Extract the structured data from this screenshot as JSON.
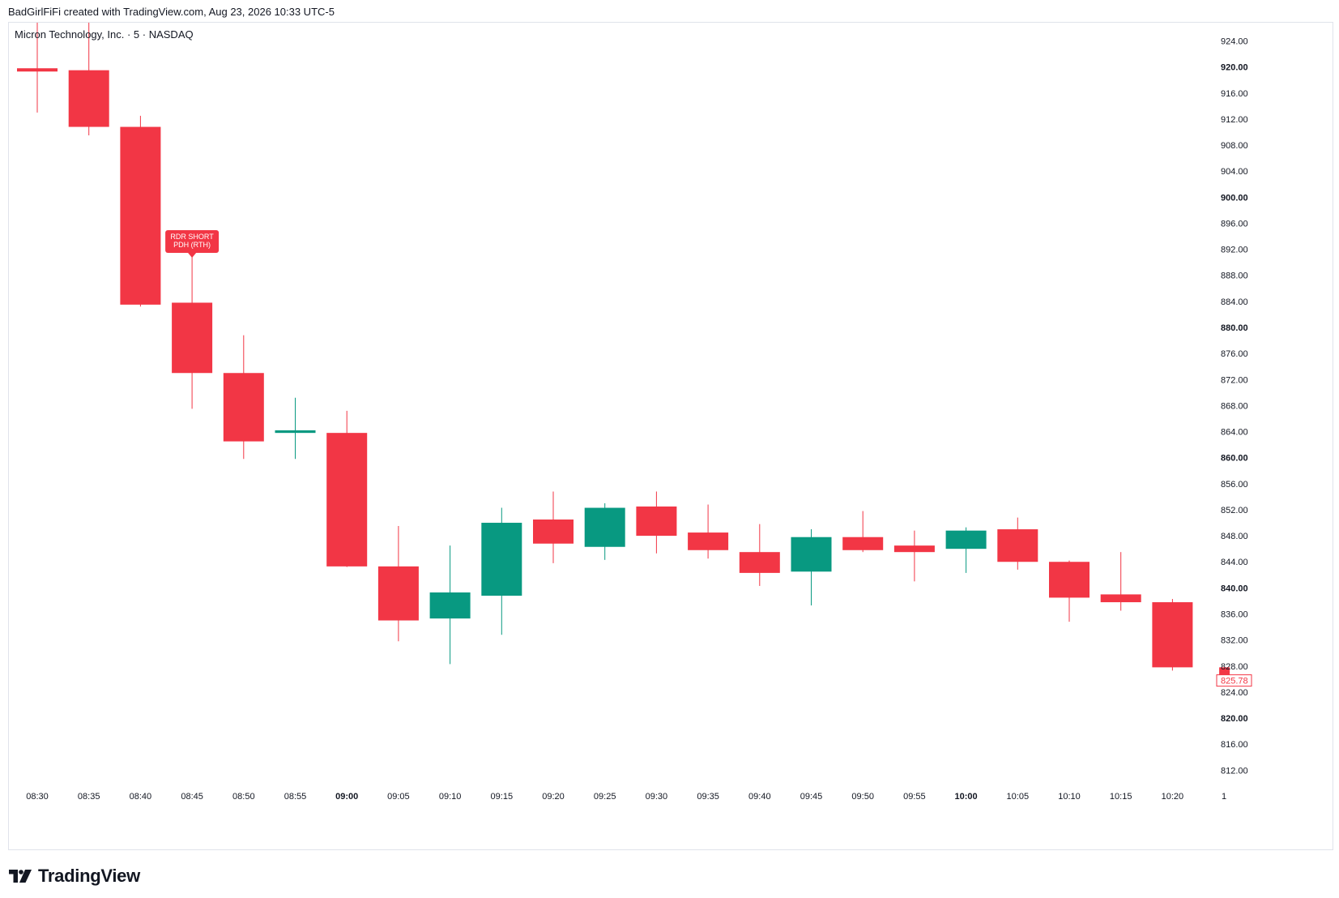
{
  "header": "BadGirlFiFi created with TradingView.com, Aug 23, 2026 10:33 UTC-5",
  "symbol_line": "Micron Technology, Inc. · 5 · NASDAQ",
  "brand": {
    "name": "TradingView",
    "icon": "tradingview-logo-icon"
  },
  "colors": {
    "up": "#089981",
    "down": "#F23645",
    "label_bg": "#F23645",
    "label_text": "#ffffff",
    "last_price_border": "#F23645"
  },
  "chart_data": {
    "type": "candlestick",
    "title": "Micron Technology, Inc. · 5 · NASDAQ",
    "interval": "5",
    "exchange": "NASDAQ",
    "y_axis": {
      "position": "right",
      "ylim": [
        809.8,
        926.8
      ],
      "ticks": [
        "924.00",
        "920.00",
        "916.00",
        "912.00",
        "908.00",
        "904.00",
        "900.00",
        "896.00",
        "892.00",
        "888.00",
        "884.00",
        "880.00",
        "876.00",
        "872.00",
        "868.00",
        "864.00",
        "860.00",
        "856.00",
        "852.00",
        "848.00",
        "844.00",
        "840.00",
        "836.00",
        "832.00",
        "828.00",
        "824.00",
        "820.00",
        "816.00",
        "812.00"
      ],
      "bold_ticks": [
        "920.00",
        "900.00",
        "880.00",
        "860.00",
        "840.00",
        "820.00"
      ]
    },
    "x_axis": {
      "ticks": [
        "08:30",
        "08:35",
        "08:40",
        "08:45",
        "08:50",
        "08:55",
        "09:00",
        "09:05",
        "09:10",
        "09:15",
        "09:20",
        "09:25",
        "09:30",
        "09:35",
        "09:40",
        "09:45",
        "09:50",
        "09:55",
        "10:00",
        "10:05",
        "10:10",
        "10:15",
        "10:20",
        "1"
      ],
      "bold_ticks": [
        "09:00",
        "10:00"
      ]
    },
    "candles": [
      {
        "time": "08:30",
        "open": 919.8,
        "high": 927.5,
        "low": 913.0,
        "close": 919.3
      },
      {
        "time": "08:35",
        "open": 919.5,
        "high": 927.5,
        "low": 909.5,
        "close": 910.8
      },
      {
        "time": "08:40",
        "open": 910.8,
        "high": 912.5,
        "low": 883.2,
        "close": 883.5
      },
      {
        "time": "08:45",
        "open": 883.8,
        "high": 891.5,
        "low": 867.5,
        "close": 873.0
      },
      {
        "time": "08:50",
        "open": 873.0,
        "high": 878.8,
        "low": 859.8,
        "close": 862.5
      },
      {
        "time": "08:55",
        "open": 863.8,
        "high": 869.2,
        "low": 859.8,
        "close": 864.2
      },
      {
        "time": "09:00",
        "open": 863.8,
        "high": 867.2,
        "low": 843.2,
        "close": 843.3
      },
      {
        "time": "09:05",
        "open": 843.3,
        "high": 849.5,
        "low": 831.8,
        "close": 835.0
      },
      {
        "time": "09:10",
        "open": 835.3,
        "high": 846.5,
        "low": 828.3,
        "close": 839.3
      },
      {
        "time": "09:15",
        "open": 838.8,
        "high": 852.3,
        "low": 832.8,
        "close": 850.0
      },
      {
        "time": "09:20",
        "open": 850.5,
        "high": 854.8,
        "low": 843.8,
        "close": 846.8
      },
      {
        "time": "09:25",
        "open": 846.3,
        "high": 853.0,
        "low": 844.3,
        "close": 852.3
      },
      {
        "time": "09:30",
        "open": 852.5,
        "high": 854.8,
        "low": 845.3,
        "close": 848.0
      },
      {
        "time": "09:35",
        "open": 848.5,
        "high": 852.8,
        "low": 844.5,
        "close": 845.8
      },
      {
        "time": "09:40",
        "open": 845.5,
        "high": 849.8,
        "low": 840.3,
        "close": 842.3
      },
      {
        "time": "09:45",
        "open": 842.5,
        "high": 849.0,
        "low": 837.3,
        "close": 847.8
      },
      {
        "time": "09:50",
        "open": 847.8,
        "high": 851.8,
        "low": 845.5,
        "close": 845.8
      },
      {
        "time": "09:55",
        "open": 846.5,
        "high": 848.8,
        "low": 841.0,
        "close": 845.5
      },
      {
        "time": "10:00",
        "open": 846.0,
        "high": 849.3,
        "low": 842.3,
        "close": 848.8
      },
      {
        "time": "10:05",
        "open": 849.0,
        "high": 850.8,
        "low": 842.8,
        "close": 844.0
      },
      {
        "time": "10:10",
        "open": 844.0,
        "high": 844.2,
        "low": 834.8,
        "close": 838.5
      },
      {
        "time": "10:15",
        "open": 839.0,
        "high": 845.5,
        "low": 836.5,
        "close": 837.8
      },
      {
        "time": "10:20",
        "open": 837.8,
        "high": 838.3,
        "low": 827.3,
        "close": 827.8
      },
      {
        "time": "10:25",
        "open": 827.8,
        "high": 827.8,
        "low": 825.78,
        "close": 825.78
      }
    ],
    "annotations": [
      {
        "candle": "08:45",
        "lines": [
          "RDR SHORT",
          "PDH (RTH)"
        ]
      }
    ],
    "last_price": "825.78",
    "grid": false,
    "legend": "none"
  }
}
